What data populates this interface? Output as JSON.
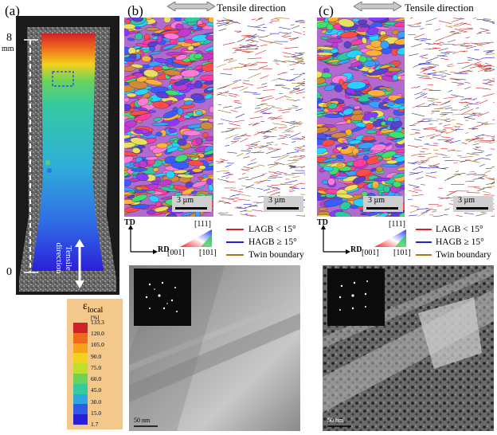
{
  "panels": {
    "a": {
      "label": "(a)"
    },
    "b": {
      "label": "(b)"
    },
    "c": {
      "label": "(c)"
    }
  },
  "strain_map": {
    "scale_top": "8",
    "scale_unit": "mm",
    "scale_bottom": "0",
    "tensile_label": "Tensile direction"
  },
  "colorbar": {
    "title": "ε",
    "title_sub": "local",
    "unit": "[%]",
    "ticks": [
      "133.3",
      "120.0",
      "105.0",
      "90.0",
      "75.0",
      "60.0",
      "45.0",
      "30.0",
      "15.0",
      "1.7"
    ],
    "colors": [
      "#d0202a",
      "#ee6a1c",
      "#f6a21a",
      "#f3d21c",
      "#bfe02a",
      "#6ad35a",
      "#34c9a0",
      "#2fa6e0",
      "#2f5ce6",
      "#2a1fd8"
    ]
  },
  "ebsd": {
    "tensile_direction_label": "Tensile direction",
    "scale_bar": "3 µm",
    "axes": {
      "td": "TD",
      "rd": "RD"
    },
    "ipf": {
      "top": "[111]",
      "left": "[001]",
      "right": "[101]"
    },
    "legend": [
      {
        "label": "LAGB < 15°",
        "color": "#d8202a"
      },
      {
        "label": "HAGB ≥ 15°",
        "color": "#2222cc"
      },
      {
        "label": "Twin boundary",
        "color": "#a8781a"
      }
    ]
  },
  "tem": {
    "scale_bar": "50 nm"
  }
}
